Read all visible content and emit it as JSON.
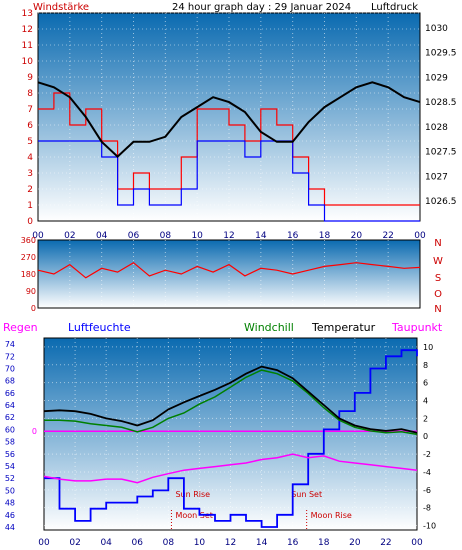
{
  "header": {
    "left_label": "Windstärke",
    "title": "24 hour graph day : 29 Januar 2024",
    "right_label": "Luftdruck"
  },
  "colors": {
    "wind": "#ff0000",
    "gust": "#0000ff",
    "pressure": "#000000",
    "direction": "#ff0000",
    "rain": "#ff00ff",
    "humidity": "#0000ff",
    "windchill": "#008000",
    "temperature": "#000000",
    "dewpoint": "#ff00ff",
    "bg_top": "#0a6ab0",
    "bg_bottom": "#ffffff"
  },
  "time_ticks": [
    "00",
    "02",
    "04",
    "06",
    "08",
    "10",
    "12",
    "14",
    "16",
    "18",
    "20",
    "22",
    "00"
  ],
  "chart_data": [
    {
      "type": "line",
      "name": "wind",
      "left_axis": {
        "label": "Windstärke",
        "ticks": [
          0,
          1,
          2,
          3,
          4,
          5,
          6,
          7,
          8,
          9,
          10,
          11,
          12,
          13
        ],
        "range": [
          0,
          13
        ]
      },
      "right_axis": {
        "label": "Luftdruck",
        "ticks": [
          "1026.5",
          "1027",
          "1027.5",
          "1028",
          "1028.5",
          "1029",
          "1029.5",
          "1030"
        ],
        "range": [
          1026.1,
          1030.3
        ]
      },
      "x_hours": [
        0,
        1,
        2,
        3,
        4,
        5,
        6,
        7,
        8,
        9,
        10,
        11,
        12,
        13,
        14,
        15,
        16,
        17,
        18,
        19,
        20,
        21,
        22,
        23,
        24
      ],
      "wind_speed": [
        7,
        8,
        6,
        7,
        5,
        2,
        3,
        2,
        2,
        4,
        7,
        7,
        6,
        5,
        7,
        6,
        4,
        2,
        1,
        1,
        1,
        1,
        1,
        1,
        1
      ],
      "wind_gust": [
        5,
        5,
        5,
        5,
        4,
        1,
        2,
        1,
        1,
        2,
        5,
        5,
        5,
        4,
        5,
        5,
        3,
        1,
        0,
        0,
        0,
        0,
        0,
        0,
        0
      ],
      "pressure": [
        1028.9,
        1028.8,
        1028.6,
        1028.2,
        1027.7,
        1027.4,
        1027.7,
        1027.7,
        1027.8,
        1028.2,
        1028.4,
        1028.6,
        1028.5,
        1028.3,
        1027.9,
        1027.7,
        1027.7,
        1028.1,
        1028.4,
        1028.6,
        1028.8,
        1028.9,
        1028.8,
        1028.6,
        1028.5
      ]
    },
    {
      "type": "line",
      "name": "direction",
      "right_axis": {
        "ticks": [
          "N",
          "W",
          "S",
          "O",
          "N"
        ]
      },
      "left_axis": {
        "ticks": [
          0,
          90,
          180,
          270,
          360
        ],
        "range": [
          0,
          360
        ]
      },
      "direction": [
        200,
        180,
        230,
        160,
        210,
        190,
        240,
        170,
        200,
        180,
        220,
        190,
        230,
        170,
        210,
        200,
        180,
        200,
        220,
        230,
        240,
        230,
        220,
        210,
        215
      ]
    },
    {
      "type": "line",
      "name": "climate",
      "legend": {
        "rain": "Regen",
        "humidity": "Luftfeuchte",
        "windchill": "Windchill",
        "temperature": "Temperatur",
        "dewpoint": "Taupunkt"
      },
      "left_axis": {
        "ticks": [
          44,
          46,
          48,
          50,
          52,
          54,
          56,
          58,
          60,
          62,
          64,
          66,
          68,
          70,
          72,
          74
        ],
        "range": [
          43.5,
          75
        ]
      },
      "right_axis": {
        "ticks": [
          -10,
          -8,
          -6,
          -4,
          -2,
          0,
          2,
          4,
          6,
          8,
          10
        ],
        "range": [
          -10.5,
          11
        ]
      },
      "rain_marker": "0",
      "annotations": [
        {
          "text": "Sun Rise",
          "hour": 8.2
        },
        {
          "text": "Moon Set",
          "hour": 8.2
        },
        {
          "text": "Sun Set",
          "hour": 16.9
        },
        {
          "text": "Moon Rise",
          "hour": 16.9
        }
      ],
      "humidity": [
        52,
        47,
        45,
        47,
        48,
        48,
        49,
        50,
        52,
        47,
        46,
        45,
        46,
        45,
        44,
        46,
        51,
        56,
        60,
        63,
        66,
        70,
        72,
        73,
        72
      ],
      "temperature": [
        2.8,
        2.9,
        2.8,
        2.5,
        2.0,
        1.7,
        1.2,
        1.8,
        3.0,
        3.8,
        4.5,
        5.2,
        6.0,
        7.0,
        7.8,
        7.4,
        6.5,
        5.0,
        3.5,
        2.0,
        1.2,
        0.8,
        0.6,
        0.8,
        0.4
      ],
      "windchill": [
        1.8,
        1.8,
        1.7,
        1.4,
        1.2,
        1.0,
        0.5,
        1.0,
        2.0,
        2.6,
        3.6,
        4.4,
        5.5,
        6.6,
        7.4,
        7.0,
        6.2,
        4.8,
        3.2,
        1.8,
        1.0,
        0.6,
        0.4,
        0.5,
        0.2
      ],
      "dewpoint": [
        -4.5,
        -4.8,
        -5.0,
        -5.0,
        -4.8,
        -4.8,
        -5.2,
        -4.6,
        -4.2,
        -3.8,
        -3.6,
        -3.4,
        -3.2,
        -3.0,
        -2.6,
        -2.4,
        -2.0,
        -2.4,
        -2.2,
        -2.8,
        -3.0,
        -3.2,
        -3.4,
        -3.6,
        -3.8
      ],
      "rain": [
        0,
        0,
        0,
        0,
        0,
        0,
        0,
        0,
        0,
        0,
        0,
        0,
        0,
        0,
        0,
        0,
        0,
        0,
        0,
        0,
        0,
        0,
        0,
        0,
        0
      ]
    }
  ]
}
